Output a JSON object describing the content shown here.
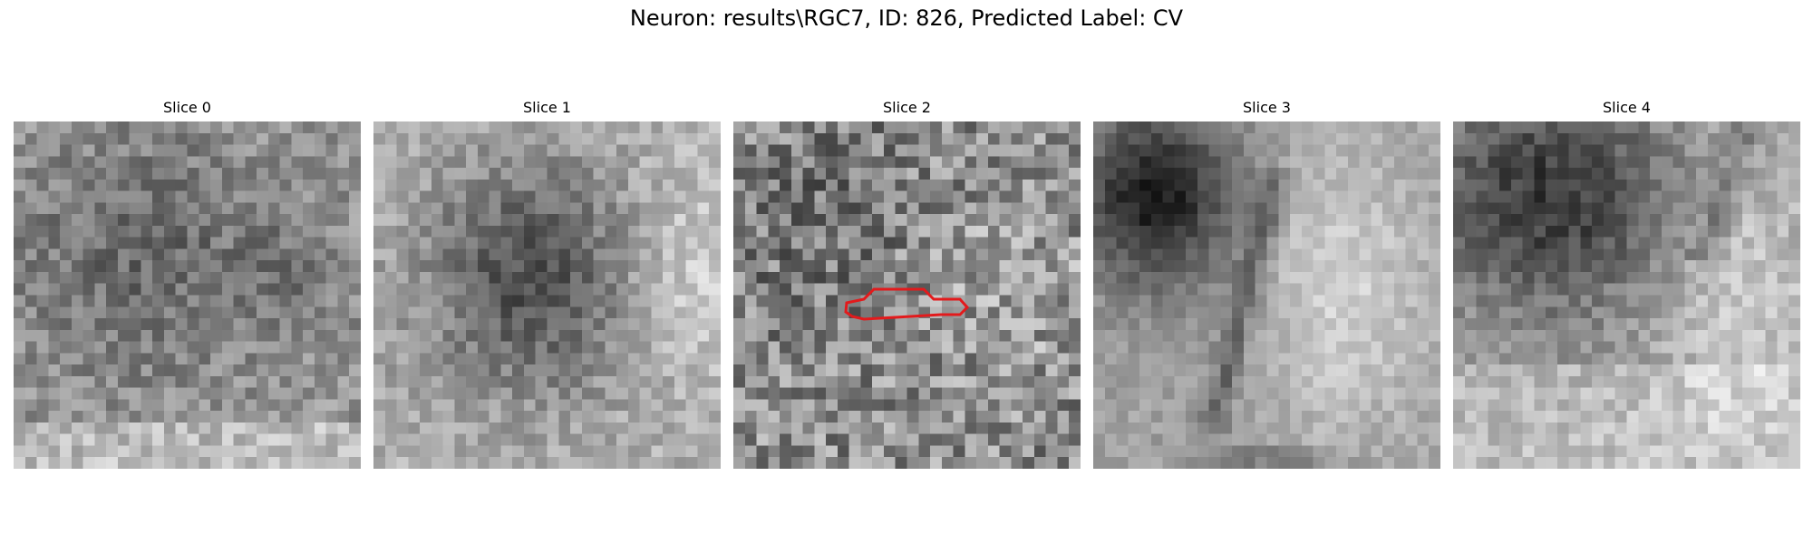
{
  "figure": {
    "suptitle": "Neuron: results\\RGC7, ID: 826, Predicted Label: CV"
  },
  "panels": [
    {
      "title": "Slice 0",
      "pattern": "blob-center"
    },
    {
      "title": "Slice 1",
      "pattern": "blob-dark"
    },
    {
      "title": "Slice 2",
      "pattern": "noise",
      "has_contour": true
    },
    {
      "title": "Slice 3",
      "pattern": "cells-large"
    },
    {
      "title": "Slice 4",
      "pattern": "cells-top"
    }
  ],
  "colors": {
    "contour": "#e31a1c",
    "colormap": "gray"
  }
}
